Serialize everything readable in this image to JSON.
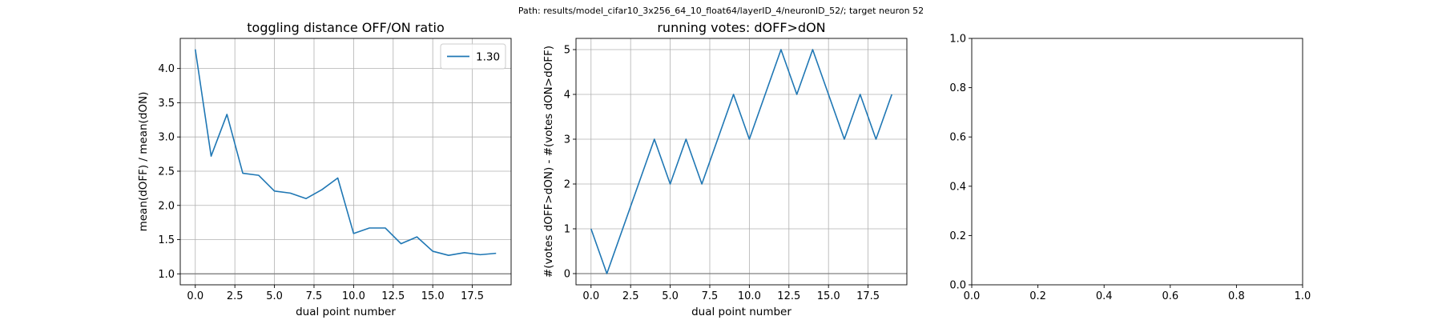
{
  "figure": {
    "suptitle": "Path: results/model_cifar10_3x256_64_10_float64/layerID_4/neuronID_52/; target neuron 52"
  },
  "colors": {
    "series": "#1f77b4",
    "grid": "#b0b0b0",
    "refline": "#808080",
    "axes": "#000000"
  },
  "chart_data": [
    {
      "type": "line",
      "title": "toggling distance OFF/ON ratio",
      "xlabel": "dual point number",
      "ylabel": "mean(dOFF) / mean(dON)",
      "xlim": [
        -0.95,
        19.95
      ],
      "ylim": [
        0.84,
        4.44
      ],
      "xticks": [
        0,
        2.5,
        5,
        7.5,
        10,
        12.5,
        15,
        17.5
      ],
      "xtick_labels": [
        "0.0",
        "2.5",
        "5.0",
        "7.5",
        "10.0",
        "12.5",
        "15.0",
        "17.5"
      ],
      "yticks": [
        1,
        1.5,
        2,
        2.5,
        3,
        3.5,
        4
      ],
      "ytick_labels": [
        "1.0",
        "1.5",
        "2.0",
        "2.5",
        "3.0",
        "3.5",
        "4.0"
      ],
      "grid": true,
      "legend": "top-right",
      "hline": 1.0,
      "series": [
        {
          "name": "1.30",
          "x": [
            0,
            1,
            2,
            3,
            4,
            5,
            6,
            7,
            8,
            9,
            10,
            11,
            12,
            13,
            14,
            15,
            16,
            17,
            18,
            19
          ],
          "y": [
            4.28,
            2.72,
            3.33,
            2.47,
            2.44,
            2.21,
            2.18,
            2.1,
            2.23,
            2.4,
            1.59,
            1.67,
            1.67,
            1.44,
            1.54,
            1.33,
            1.27,
            1.31,
            1.28,
            1.3
          ]
        }
      ]
    },
    {
      "type": "line",
      "title": "running votes: dOFF>dON",
      "xlabel": "dual point number",
      "ylabel": "#(votes dOFF>dON) - #(votes dON>dOFF)",
      "xlim": [
        -0.95,
        19.95
      ],
      "ylim": [
        -0.25,
        5.25
      ],
      "xticks": [
        0,
        2.5,
        5,
        7.5,
        10,
        12.5,
        15,
        17.5
      ],
      "xtick_labels": [
        "0.0",
        "2.5",
        "5.0",
        "7.5",
        "10.0",
        "12.5",
        "15.0",
        "17.5"
      ],
      "yticks": [
        0,
        1,
        2,
        3,
        4,
        5
      ],
      "ytick_labels": [
        "0",
        "1",
        "2",
        "3",
        "4",
        "5"
      ],
      "grid": true,
      "hline": 0,
      "series": [
        {
          "x": [
            0,
            1,
            2,
            3,
            4,
            5,
            6,
            7,
            8,
            9,
            10,
            11,
            12,
            13,
            14,
            15,
            16,
            17,
            18,
            19
          ],
          "y": [
            1,
            0,
            1,
            2,
            3,
            2,
            3,
            2,
            3,
            4,
            3,
            4,
            5,
            4,
            5,
            4,
            3,
            4,
            3,
            4
          ]
        }
      ]
    },
    {
      "type": "line",
      "title": "",
      "xlim": [
        0,
        1
      ],
      "ylim": [
        0,
        1
      ],
      "xticks": [
        0,
        0.2,
        0.4,
        0.6,
        0.8,
        1.0
      ],
      "xtick_labels": [
        "0.0",
        "0.2",
        "0.4",
        "0.6",
        "0.8",
        "1.0"
      ],
      "yticks": [
        0,
        0.2,
        0.4,
        0.6,
        0.8,
        1.0
      ],
      "ytick_labels": [
        "0.0",
        "0.2",
        "0.4",
        "0.6",
        "0.8",
        "1.0"
      ],
      "grid": false,
      "series": []
    }
  ]
}
